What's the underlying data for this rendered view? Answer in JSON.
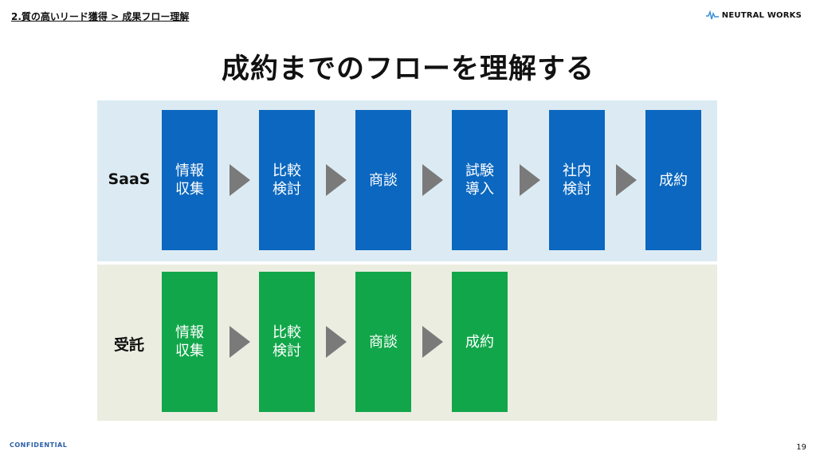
{
  "header": {
    "breadcrumb": "2.質の高いリード獲得 > 成果フロー理解",
    "logo_text": "NEUTRAL WORKS"
  },
  "title": "成約までのフローを理解する",
  "colors": {
    "saas_box": "#0b67bf",
    "saas_bg": "#dcebf3",
    "jutaku_box": "#12a64a",
    "jutaku_bg": "#ebede0",
    "arrow": "#7a7a7a"
  },
  "rows": [
    {
      "label": "SaaS",
      "steps": [
        "情報\n収集",
        "比較\n検討",
        "商談",
        "試験\n導入",
        "社内\n検討",
        "成約"
      ]
    },
    {
      "label": "受託",
      "steps": [
        "情報\n収集",
        "比較\n検討",
        "商談",
        "成約"
      ]
    }
  ],
  "footer": {
    "confidential": "CONFIDENTIAL",
    "page": "19"
  }
}
